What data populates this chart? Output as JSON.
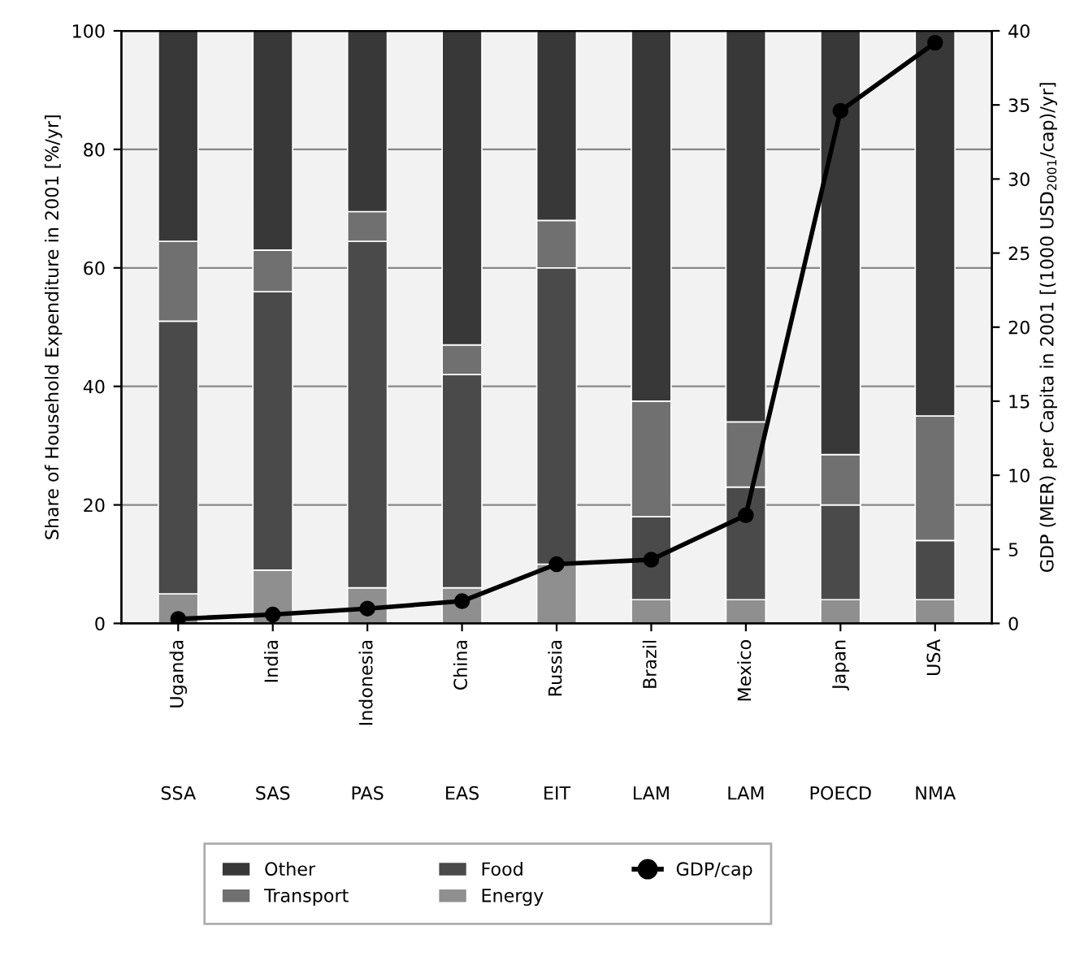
{
  "chart_data": {
    "type": "bar",
    "stacked": true,
    "ylabel": "Share of Household Expenditure in 2001 [%/yr]",
    "y2label": "GDP (MER) per Capita in 2001 [(1000 USD$_{2001}$/cap)/yr]",
    "categories": [
      "Uganda",
      "India",
      "Indonesia",
      "China",
      "Russia",
      "Brazil",
      "Mexico",
      "Japan",
      "USA"
    ],
    "series": [
      {
        "name": "Energy",
        "color": "#8f8f8f",
        "values": [
          5,
          9,
          6,
          6,
          10,
          4,
          4,
          4,
          4
        ]
      },
      {
        "name": "Food",
        "color": "#4a4a4a",
        "values": [
          46,
          47,
          58.5,
          36,
          50,
          14,
          19,
          16,
          10
        ]
      },
      {
        "name": "Transport",
        "color": "#707070",
        "values": [
          13.5,
          7,
          5,
          5,
          8,
          19.5,
          11,
          8.5,
          21
        ]
      },
      {
        "name": "Other",
        "color": "#383838",
        "values": [
          35.5,
          37,
          30.5,
          53,
          32,
          62.5,
          66,
          71.5,
          65
        ]
      },
      {
        "name": "GDP/cap",
        "type": "line",
        "axis": "y2",
        "color": "#000000",
        "marker": "circle",
        "values": [
          0.3,
          0.6,
          1.0,
          1.5,
          4.0,
          4.3,
          7.3,
          34.6,
          39.2
        ]
      }
    ],
    "ylim": [
      0,
      100
    ],
    "yticks": [
      0,
      20,
      40,
      60,
      80,
      100
    ],
    "y2lim": [
      0,
      40
    ],
    "y2ticks": [
      0,
      5,
      10,
      15,
      20,
      25,
      30,
      35,
      40
    ],
    "grid": "y",
    "legend": "bottom",
    "annotations": [
      "SSA",
      "SAS",
      "PAS",
      "EAS",
      "EIT",
      "LAM",
      "LAM",
      "POECD",
      "NMA"
    ]
  }
}
